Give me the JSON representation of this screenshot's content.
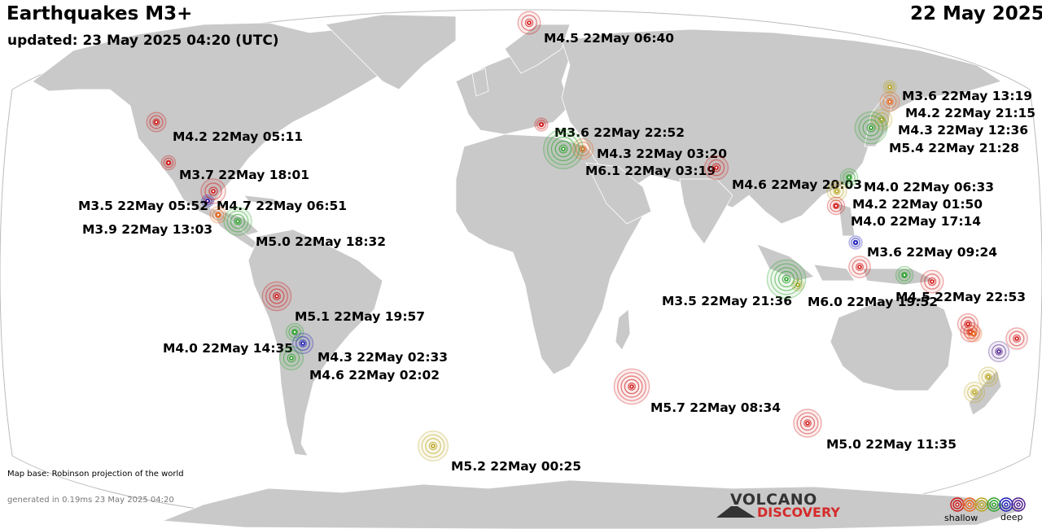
{
  "header": {
    "title": "Earthquakes M3+",
    "updated": "updated: 23 May 2025 04:20 (UTC)",
    "date": "22 May 2025"
  },
  "footer": {
    "map_base": "Map base: Robinson projection of the world",
    "generated": "generated in 0.19ms 23 May 2025 04:20"
  },
  "logo": {
    "line1": "VOLCANO",
    "line2": "DISCOVERY"
  },
  "legend": {
    "shallow": "shallow",
    "deep": "deep",
    "depth_colors": [
      "#d11414",
      "#e8651a",
      "#b9a41f",
      "#2aa12a",
      "#1a1ab8",
      "#4b1a8a"
    ]
  },
  "colors": {
    "land": "#c9c9c9",
    "ocean": "#ffffff",
    "border": "#ffffff",
    "map_outline": "#bbbbbb"
  },
  "quakes": [
    {
      "label": "M4.5 22May 06:40",
      "mag": 4.5,
      "depth_color": "#d11414"
    },
    {
      "label": "M4.2 22May 05:11",
      "mag": 4.2,
      "depth_color": "#d11414"
    },
    {
      "label": "M3.7 22May 18:01",
      "mag": 3.7,
      "depth_color": "#d11414"
    },
    {
      "label": "M3.5 22May 05:52",
      "mag": 3.5,
      "depth_color": "#1a1ab8"
    },
    {
      "label": "M4.7 22May 06:51",
      "mag": 4.7,
      "depth_color": "#d11414"
    },
    {
      "label": "M3.9 22May 13:03",
      "mag": 3.9,
      "depth_color": "#e8651a"
    },
    {
      "label": "M5.0 22May 18:32",
      "mag": 5.0,
      "depth_color": "#2aa12a"
    },
    {
      "label": "M5.1 22May 19:57",
      "mag": 5.1,
      "depth_color": "#d11414"
    },
    {
      "label": "M4.0 22May 14:35",
      "mag": 4.0,
      "depth_color": "#2aa12a"
    },
    {
      "label": "M4.3 22May 02:33",
      "mag": 4.3,
      "depth_color": "#1a1ab8"
    },
    {
      "label": "M4.6 22May 02:02",
      "mag": 4.6,
      "depth_color": "#2aa12a"
    },
    {
      "label": "M5.2 22May 00:25",
      "mag": 5.2,
      "depth_color": "#b9a41f"
    },
    {
      "label": "M3.6 22May 22:52",
      "mag": 3.6,
      "depth_color": "#d11414"
    },
    {
      "label": "M4.3 22May 03:20",
      "mag": 4.3,
      "depth_color": "#e8651a"
    },
    {
      "label": "M6.1 22May 03:19",
      "mag": 6.1,
      "depth_color": "#2aa12a"
    },
    {
      "label": "M4.6 22May 20:03",
      "mag": 4.6,
      "depth_color": "#d11414"
    },
    {
      "label": "M5.7 22May 08:34",
      "mag": 5.7,
      "depth_color": "#d11414"
    },
    {
      "label": "M5.0 22May 11:35",
      "mag": 5.0,
      "depth_color": "#d11414"
    },
    {
      "label": "M3.6 22May 13:19",
      "mag": 3.6,
      "depth_color": "#b9a41f"
    },
    {
      "label": "M4.2 22May 21:15",
      "mag": 4.2,
      "depth_color": "#e8651a"
    },
    {
      "label": "M4.3 22May 12:36",
      "mag": 4.3,
      "depth_color": "#b9a41f"
    },
    {
      "label": "M5.4 22May 21:28",
      "mag": 5.4,
      "depth_color": "#2aa12a"
    },
    {
      "label": "M4.0 22May 06:33",
      "mag": 4.0,
      "depth_color": "#2aa12a"
    },
    {
      "label": "M4.2 22May 01:50",
      "mag": 4.2,
      "depth_color": "#b9a41f"
    },
    {
      "label": "M4.0 22May 17:14",
      "mag": 4.0,
      "depth_color": "#d11414"
    },
    {
      "label": "M3.6 22May 09:24",
      "mag": 3.6,
      "depth_color": "#1a1ab8"
    },
    {
      "label": "M3.5 22May 21:36",
      "mag": 3.5,
      "depth_color": "#b9a41f"
    },
    {
      "label": "M6.0 22May 19:52",
      "mag": 6.0,
      "depth_color": "#2aa12a"
    },
    {
      "label": "M4.5 22May 22:53",
      "mag": 4.5,
      "depth_color": "#d11414"
    },
    {
      "label": "",
      "mag": 4.4,
      "depth_color": "#d11414"
    },
    {
      "label": "",
      "mag": 4.0,
      "depth_color": "#2aa12a"
    },
    {
      "label": "",
      "mag": 4.3,
      "depth_color": "#d11414"
    },
    {
      "label": "",
      "mag": 4.2,
      "depth_color": "#d11414"
    },
    {
      "label": "",
      "mag": 3.9,
      "depth_color": "#e8651a"
    },
    {
      "label": "",
      "mag": 4.4,
      "depth_color": "#d11414"
    },
    {
      "label": "",
      "mag": 4.3,
      "depth_color": "#4b1a8a"
    },
    {
      "label": "",
      "mag": 4.2,
      "depth_color": "#b9a41f"
    },
    {
      "label": "",
      "mag": 4.3,
      "depth_color": "#b9a41f"
    }
  ]
}
